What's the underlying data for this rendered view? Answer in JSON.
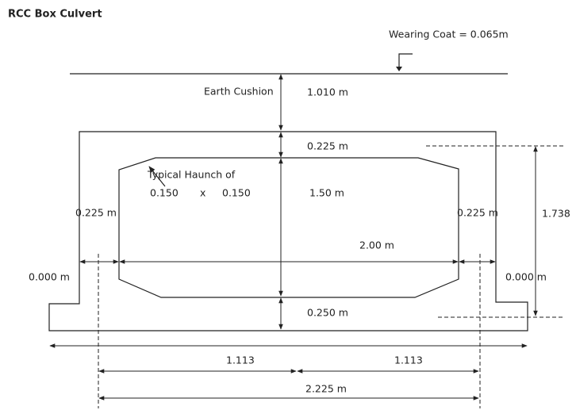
{
  "title": "RCC Box Culvert",
  "labels": {
    "wearing_coat": "Wearing Coat = 0.065m",
    "earth_cushion": "Earth Cushion",
    "cushion_depth": "1.010 m",
    "top_slab": "0.225 m",
    "haunch_title": "Typical Haunch of",
    "haunch_w": "0.150",
    "haunch_x": "x",
    "haunch_h": "0.150",
    "clear_height": "1.50 m",
    "left_wall": "0.225 m",
    "right_wall": "0.225 m",
    "overall_height": "1.738",
    "clear_span": "2.00 m",
    "left_projection": "0.000 m",
    "right_projection": "0.000 m",
    "bottom_slab": "0.250 m",
    "half_span_left": "1.113",
    "half_span_right": "1.113",
    "effective_span": "2.225 m"
  }
}
